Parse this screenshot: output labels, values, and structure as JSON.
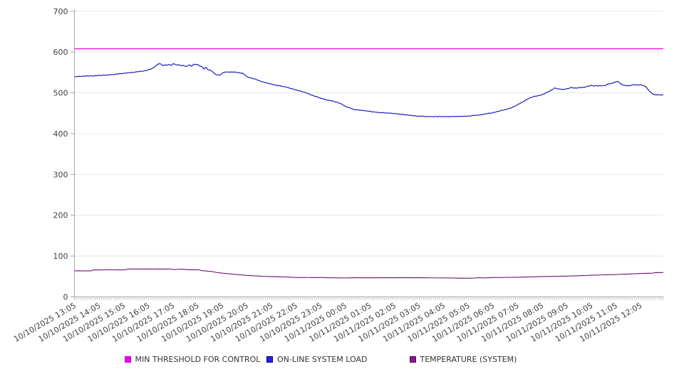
{
  "chart_data": {
    "type": "line",
    "title": "",
    "x_axis": {
      "tick_labels": [
        "10/10/2025 13:05",
        "10/10/2025 14:05",
        "10/10/2025 15:05",
        "10/10/2025 16:05",
        "10/10/2025 17:05",
        "10/10/2025 18:05",
        "10/10/2025 19:05",
        "10/10/2025 20:05",
        "10/10/2025 21:05",
        "10/10/2025 22:05",
        "10/10/2025 23:05",
        "10/11/2025 00:05",
        "10/11/2025 01:05",
        "10/11/2025 02:05",
        "10/11/2025 03:05",
        "10/11/2025 04:05",
        "10/11/2025 05:05",
        "10/11/2025 06:05",
        "10/11/2025 07:05",
        "10/11/2025 08:05",
        "10/11/2025 09:05",
        "10/11/2025 10:05",
        "10/11/2025 11:05",
        "10/11/2025 12:05"
      ],
      "minor_tick_count": 288
    },
    "y_axis": {
      "min": 0,
      "max": 700,
      "tick_step": 100,
      "tick_labels": [
        "0",
        "100",
        "200",
        "300",
        "400",
        "500",
        "600",
        "700"
      ]
    },
    "grid": true,
    "legend_position": "bottom",
    "series": [
      {
        "name": "MIN THRESHOLD FOR CONTROL",
        "kind": "threshold",
        "value": 608,
        "color": "#ee00e4",
        "legend_box": "#ee00ee",
        "legend_border": "#c000c0"
      },
      {
        "name": "ON-LINE SYSTEM LOAD",
        "kind": "line",
        "color": "#2525bb",
        "legend_box": "#2222dd",
        "legend_border": "#000080",
        "values": [
          539.8,
          539.5,
          540.7,
          540.1,
          541.1,
          540.6,
          541.9,
          541.1,
          541.8,
          541.1,
          542.4,
          541.9,
          543.3,
          542.1,
          543.8,
          543.1,
          543.9,
          543.9,
          545.1,
          544.6,
          546.0,
          545.8,
          547.4,
          546.7,
          548.2,
          548.3,
          549.3,
          549.3,
          550.5,
          549.9,
          551.9,
          551.6,
          553.0,
          552.5,
          554.3,
          554.5,
          556.8,
          557.8,
          560.8,
          563.5,
          568.2,
          571.5,
          570.8,
          566.5,
          568.6,
          567.7,
          569.7,
          567.0,
          571.7,
          569.7,
          567.8,
          569.0,
          566.1,
          567.2,
          564.6,
          566.0,
          568.5,
          564.9,
          570.0,
          569.7,
          569.4,
          565.7,
          564.4,
          558.3,
          562.8,
          556.3,
          555.8,
          552.8,
          547.8,
          544.3,
          544.0,
          543.4,
          548.6,
          550.4,
          551.2,
          550.7,
          551.0,
          550.7,
          551.1,
          549.9,
          549.6,
          548.0,
          548.1,
          543.5,
          539.9,
          537.4,
          536.5,
          534.6,
          534.1,
          531.4,
          529.9,
          527.3,
          526.6,
          524.5,
          524.1,
          522.2,
          521.4,
          519.9,
          519.1,
          517.3,
          518.0,
          515.8,
          515.5,
          514.0,
          513.0,
          511.1,
          510.2,
          508.0,
          507.4,
          505.1,
          504.9,
          502.4,
          501.6,
          499.4,
          498.3,
          495.1,
          494.1,
          491.5,
          490.9,
          488.3,
          486.8,
          485.3,
          484.3,
          482.0,
          481.9,
          480.3,
          480.3,
          477.4,
          477.2,
          474.6,
          473.2,
          469.4,
          467.2,
          464.8,
          463.8,
          461.0,
          459.8,
          458.1,
          458.8,
          457.2,
          457.5,
          456.3,
          456.0,
          454.9,
          455.0,
          453.1,
          453.6,
          452.1,
          452.2,
          450.8,
          452.0,
          450.4,
          451.2,
          449.9,
          450.6,
          449.0,
          449.7,
          448.3,
          448.2,
          446.8,
          447.6,
          445.7,
          446.3,
          444.7,
          445.1,
          443.5,
          444.1,
          442.5,
          443.1,
          442.5,
          443.0,
          441.3,
          442.4,
          441.2,
          442.1,
          441.0,
          442.7,
          441.0,
          442.7,
          441.0,
          442.3,
          441.6,
          442.0,
          441.3,
          442.6,
          441.7,
          442.3,
          441.7,
          442.6,
          442.1,
          443.1,
          442.5,
          443.3,
          442.9,
          445.1,
          444.1,
          445.6,
          444.9,
          446.5,
          447.0,
          448.2,
          448.9,
          450.3,
          449.9,
          451.7,
          452.3,
          454.4,
          454.9,
          457.1,
          457.5,
          459.4,
          460.1,
          462.1,
          463.3,
          466.5,
          467.8,
          471.5,
          473.6,
          476.7,
          478.9,
          482.5,
          485.2,
          488.1,
          488.9,
          491.6,
          491.6,
          493.3,
          493.9,
          496.4,
          497.4,
          501.1,
          502.3,
          506.1,
          507.9,
          512.2,
          510.2,
          509.7,
          508.7,
          508.8,
          508.4,
          510.4,
          510.8,
          513.6,
          512.0,
          512.1,
          511.6,
          513.2,
          512.8,
          513.9,
          513.9,
          516.3,
          516.8,
          518.4,
          516.4,
          518.1,
          516.7,
          518.0,
          517.0,
          517.9,
          518.2,
          522.1,
          522.0,
          523.8,
          524.5,
          527.8,
          527.5,
          523.2,
          519.5,
          518.6,
          517.2,
          517.9,
          517.5,
          519.8,
          519.7,
          519.5,
          518.9,
          520.2,
          517.9,
          516.7,
          511.9,
          505.0,
          500.5,
          497.2,
          495.1,
          495.3,
          495.0,
          495.1,
          494.9
        ]
      },
      {
        "name": "TEMPERATURE (SYSTEM)",
        "kind": "line",
        "color": "#740d74",
        "legend_box": "#8e188e",
        "legend_border": "#550055",
        "values": [
          63.7,
          63.7,
          63.9,
          63.7,
          63.7,
          63.8,
          63.7,
          63.8,
          63.8,
          66.1,
          66.3,
          66.1,
          66.2,
          66.1,
          66.2,
          66.3,
          66.3,
          66.2,
          66.2,
          66.2,
          66.1,
          66.1,
          66.1,
          66.1,
          66.2,
          66.6,
          68.3,
          68.2,
          68.3,
          68.2,
          68.2,
          68.3,
          68.3,
          68.1,
          68.1,
          68.3,
          68.1,
          68.2,
          68.2,
          68.1,
          68.1,
          68.3,
          68.1,
          68.2,
          68.1,
          68.2,
          68.2,
          68.2,
          66.8,
          66.9,
          67.5,
          67.8,
          67.8,
          67.8,
          67.2,
          66.3,
          66.3,
          66.5,
          66.4,
          66.3,
          66.4,
          65.8,
          64.3,
          64.0,
          63.5,
          62.8,
          62.5,
          61.9,
          61.0,
          59.9,
          59.1,
          58.7,
          58.0,
          57.7,
          57.0,
          56.7,
          56.2,
          55.7,
          55.3,
          54.8,
          54.4,
          54.1,
          53.4,
          53.1,
          52.5,
          52.2,
          51.9,
          51.4,
          51.3,
          51.0,
          50.9,
          50.5,
          50.3,
          50.1,
          49.9,
          49.6,
          49.7,
          49.6,
          49.2,
          49.3,
          49.2,
          48.9,
          48.8,
          48.6,
          48.7,
          48.3,
          47.9,
          47.8,
          47.5,
          47.3,
          47.4,
          47.4,
          47.4,
          47.5,
          47.5,
          47.2,
          47.4,
          47.2,
          47.2,
          47.3,
          47.3,
          47.3,
          47.1,
          46.9,
          46.8,
          46.8,
          46.6,
          46.7,
          46.3,
          46.5,
          46.5,
          46.2,
          46.4,
          46.6,
          46.5,
          46.7,
          47.0,
          46.8,
          46.9,
          46.9,
          46.8,
          46.8,
          47.0,
          46.8,
          46.8,
          47.0,
          46.8,
          46.9,
          46.8,
          47.0,
          46.9,
          46.9,
          46.8,
          47.0,
          47.0,
          46.8,
          46.8,
          47.0,
          46.9,
          47.0,
          47.0,
          47.0,
          47.0,
          47.0,
          47.0,
          46.8,
          46.8,
          47.0,
          47.0,
          46.8,
          46.7,
          46.7,
          46.8,
          46.6,
          46.6,
          46.6,
          46.4,
          46.4,
          46.4,
          46.5,
          46.4,
          46.4,
          46.3,
          46.3,
          46.2,
          46.1,
          46.0,
          45.7,
          45.6,
          45.8,
          45.7,
          45.7,
          45.7,
          45.8,
          45.9,
          46.2,
          46.5,
          46.7,
          46.7,
          46.5,
          46.3,
          46.8,
          46.8,
          47.2,
          47.4,
          47.5,
          47.4,
          47.4,
          47.6,
          47.5,
          47.7,
          47.8,
          47.7,
          47.7,
          48.0,
          47.9,
          48.1,
          48.0,
          48.4,
          48.5,
          48.7,
          48.8,
          48.9,
          49.0,
          49.1,
          49.3,
          49.3,
          49.6,
          49.7,
          49.7,
          49.8,
          49.9,
          50.0,
          50.2,
          50.1,
          50.4,
          50.3,
          50.6,
          50.7,
          50.8,
          50.7,
          51.0,
          51.3,
          51.4,
          51.5,
          51.5,
          51.7,
          52.1,
          52.1,
          52.3,
          52.5,
          52.8,
          53.0,
          53.1,
          53.3,
          53.4,
          53.6,
          53.8,
          53.8,
          54.1,
          54.2,
          54.4,
          54.6,
          54.6,
          54.7,
          55.1,
          55.1,
          55.5,
          55.6,
          55.7,
          56.1,
          56.1,
          56.5,
          56.6,
          56.7,
          57.1,
          57.4,
          57.5,
          57.7,
          57.6,
          57.8,
          57.9,
          58.4,
          59.3,
          59.5,
          59.4,
          59.6,
          59.6
        ]
      }
    ]
  }
}
